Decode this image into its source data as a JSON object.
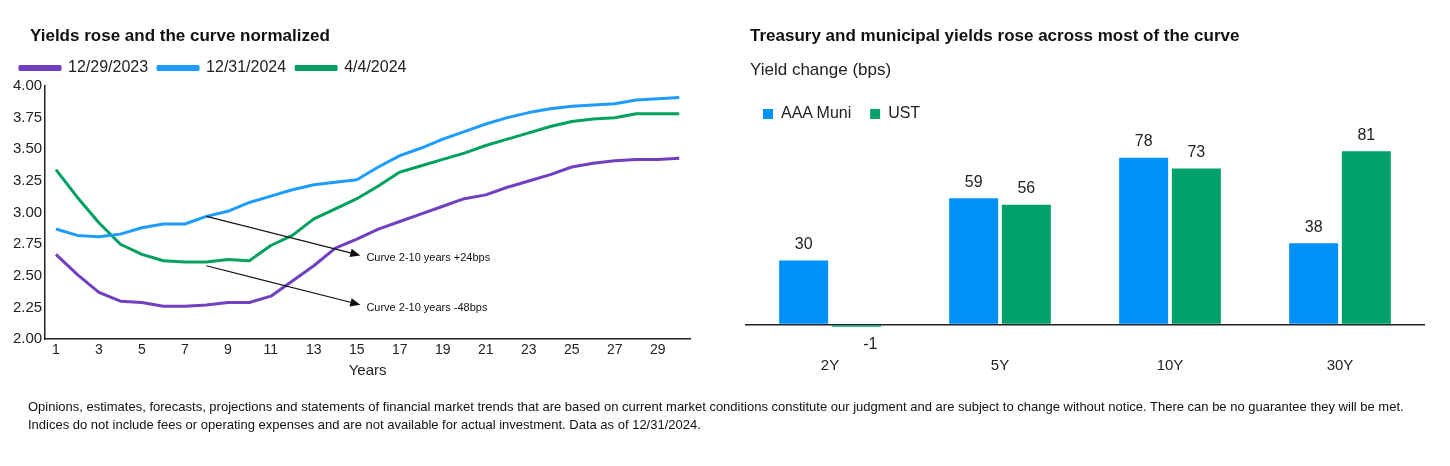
{
  "chart_data": [
    {
      "type": "line",
      "title": "Yields rose and the curve normalized",
      "xlabel": "Years",
      "x": [
        1,
        2,
        3,
        4,
        5,
        6,
        7,
        8,
        9,
        10,
        11,
        12,
        13,
        14,
        15,
        16,
        17,
        18,
        19,
        20,
        21,
        22,
        23,
        24,
        25,
        26,
        27,
        28,
        29,
        30
      ],
      "series": [
        {
          "name": "12/29/2023",
          "color": "#7040c0",
          "values": [
            2.67,
            2.51,
            2.37,
            2.3,
            2.29,
            2.26,
            2.26,
            2.27,
            2.29,
            2.29,
            2.34,
            2.46,
            2.58,
            2.72,
            2.79,
            2.87,
            2.93,
            2.99,
            3.05,
            3.11,
            3.14,
            3.2,
            3.25,
            3.3,
            3.36,
            3.39,
            3.41,
            3.42,
            3.42,
            3.43
          ]
        },
        {
          "name": "12/31/2024",
          "color": "#1e9bff",
          "values": [
            2.87,
            2.82,
            2.81,
            2.83,
            2.88,
            2.91,
            2.91,
            2.97,
            3.01,
            3.08,
            3.13,
            3.18,
            3.22,
            3.24,
            3.26,
            3.36,
            3.45,
            3.51,
            3.58,
            3.64,
            3.7,
            3.75,
            3.79,
            3.82,
            3.84,
            3.85,
            3.86,
            3.89,
            3.9,
            3.91
          ]
        },
        {
          "name": "4/4/2024",
          "color": "#00a060",
          "values": [
            3.34,
            3.12,
            2.92,
            2.75,
            2.67,
            2.62,
            2.61,
            2.61,
            2.63,
            2.62,
            2.74,
            2.82,
            2.95,
            3.03,
            3.11,
            3.21,
            3.32,
            3.37,
            3.42,
            3.47,
            3.53,
            3.58,
            3.63,
            3.68,
            3.72,
            3.74,
            3.75,
            3.78,
            3.78,
            3.78
          ]
        }
      ],
      "xlim": [
        0.5,
        30.5
      ],
      "xticks": [
        1,
        3,
        5,
        7,
        9,
        11,
        13,
        15,
        17,
        19,
        21,
        23,
        25,
        27,
        29
      ],
      "ylim": [
        2,
        4
      ],
      "yticks": [
        {
          "value": 2,
          "label": "2.00"
        },
        {
          "value": 2.25,
          "label": "2.25"
        },
        {
          "value": 2.5,
          "label": "2.50"
        },
        {
          "value": 2.75,
          "label": "2.75"
        },
        {
          "value": 3,
          "label": "3.00"
        },
        {
          "value": 3.25,
          "label": "3.25"
        },
        {
          "value": 3.5,
          "label": "3.50"
        },
        {
          "value": 3.75,
          "label": "3.75"
        },
        {
          "value": 4,
          "label": "4.00"
        }
      ],
      "annotations": [
        {
          "text": "Curve 2-10 years +24bps",
          "x": 8,
          "y": 2.97
        },
        {
          "text": "Curve 2-10 years -48bps",
          "x": 8,
          "y": 2.58
        }
      ],
      "grid": false,
      "legend": "top left",
      "marker": "none",
      "line_style": "solid"
    },
    {
      "type": "bar",
      "title": "Treasury and municipal yields rose across most of the curve",
      "ylabel": "Yield change (bps)",
      "categories": [
        "2Y",
        "5Y",
        "10Y",
        "30Y"
      ],
      "series": [
        {
          "name": "AAA Muni",
          "color": "#0091f8",
          "values": [
            30,
            59,
            78,
            38
          ]
        },
        {
          "name": "UST",
          "color": "#00a06a",
          "values": [
            -1,
            56,
            73,
            81
          ]
        }
      ],
      "data_labels": true,
      "grid": false,
      "legend": "top left",
      "tick_labels": "x",
      "annotations": [
        "Opinions, estimates, forecasts, projections and statements of financial market trends that are based on current market conditions constitute our judgment and are subject to change without notice. There can be no guarantee they will be met. Indices do not include fees or operating expenses and are not available for actual investment. Data as of 12/31/2024."
      ]
    }
  ]
}
